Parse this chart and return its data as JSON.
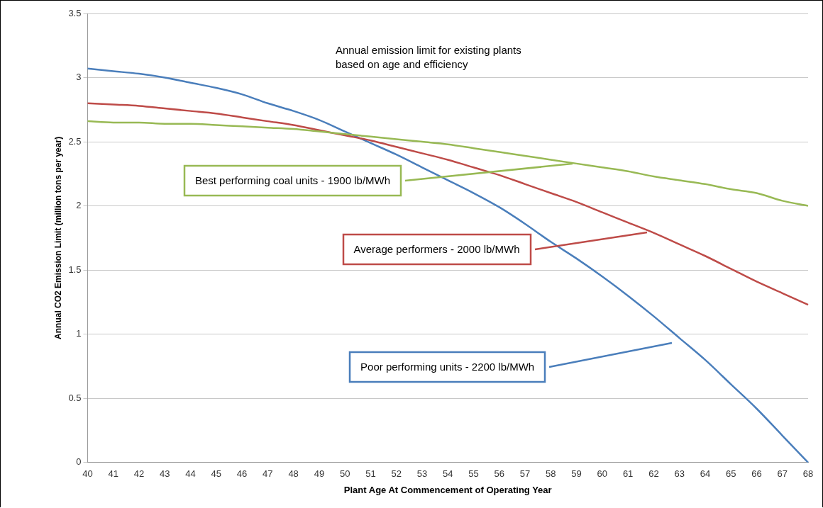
{
  "chart_data": {
    "type": "line",
    "xlabel": "Plant Age At Commencement of Operating Year",
    "ylabel": "Annual CO2 Emission Limit (million tons per year)",
    "categories": [
      "40",
      "41",
      "42",
      "43",
      "44",
      "45",
      "46",
      "47",
      "48",
      "49",
      "50",
      "51",
      "52",
      "53",
      "54",
      "55",
      "56",
      "57",
      "58",
      "59",
      "60",
      "61",
      "62",
      "63",
      "64",
      "65",
      "66",
      "67",
      "68"
    ],
    "series": [
      {
        "color": "#98b954",
        "values": [
          2.66,
          2.65,
          2.65,
          2.64,
          2.64,
          2.63,
          2.62,
          2.61,
          2.6,
          2.58,
          2.56,
          2.54,
          2.52,
          2.5,
          2.48,
          2.45,
          2.42,
          2.39,
          2.36,
          2.33,
          2.3,
          2.27,
          2.23,
          2.2,
          2.17,
          2.13,
          2.1,
          2.04,
          2.0
        ]
      },
      {
        "color": "#be4b48",
        "values": [
          2.8,
          2.79,
          2.78,
          2.76,
          2.74,
          2.72,
          2.69,
          2.66,
          2.63,
          2.59,
          2.55,
          2.51,
          2.46,
          2.41,
          2.36,
          2.3,
          2.24,
          2.17,
          2.1,
          2.03,
          1.95,
          1.87,
          1.79,
          1.7,
          1.61,
          1.51,
          1.41,
          1.32,
          1.23
        ]
      },
      {
        "color": "#4a7ebb",
        "values": [
          3.07,
          3.05,
          3.03,
          3.0,
          2.96,
          2.92,
          2.87,
          2.8,
          2.74,
          2.67,
          2.58,
          2.49,
          2.4,
          2.3,
          2.2,
          2.1,
          1.99,
          1.86,
          1.72,
          1.59,
          1.45,
          1.3,
          1.14,
          0.97,
          0.8,
          0.61,
          0.42,
          0.21,
          0.0
        ]
      }
    ],
    "ylim": [
      0,
      3.5
    ],
    "yticks": [
      0,
      0.5,
      1,
      1.5,
      2,
      2.5,
      3,
      3.5
    ],
    "grid": "y",
    "legend": false,
    "marker": "none",
    "line_style": "solid",
    "annotations": [
      "Annual emission limit for existing plants\nbased on age and efficiency",
      "Best performing coal units - 1900 lb/MWh",
      "Average performers - 2000 lb/MWh",
      "Poor performing units - 2200 lb/MWh"
    ]
  }
}
